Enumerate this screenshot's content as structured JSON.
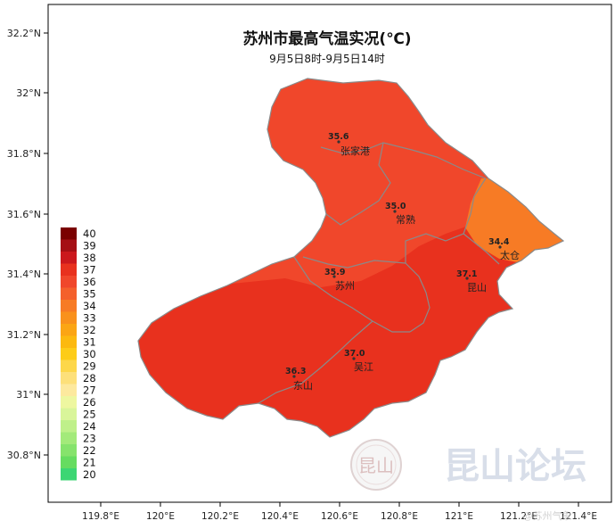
{
  "title": "苏州市最高气温实况(℃)",
  "subtitle": "9月5日8时-9月5日14时",
  "y_ticks": [
    "32.2°N",
    "32°N",
    "31.8°N",
    "31.6°N",
    "31.4°N",
    "31.2°N",
    "31°N",
    "30.8°N"
  ],
  "x_ticks": [
    "119.8°E",
    "120°E",
    "120.2°E",
    "120.4°E",
    "120.6°E",
    "120.8°E",
    "121°E",
    "121.2°E",
    "121.4°E"
  ],
  "legend": {
    "levels": [
      {
        "value": "40",
        "color": "#7a0000"
      },
      {
        "value": "39",
        "color": "#a50f15"
      },
      {
        "value": "38",
        "color": "#cb181d"
      },
      {
        "value": "37",
        "color": "#e8311e"
      },
      {
        "value": "36",
        "color": "#f0472b"
      },
      {
        "value": "35",
        "color": "#f4602c"
      },
      {
        "value": "34",
        "color": "#f77b25"
      },
      {
        "value": "33",
        "color": "#f9911c"
      },
      {
        "value": "32",
        "color": "#fba514"
      },
      {
        "value": "31",
        "color": "#fcb90f"
      },
      {
        "value": "30",
        "color": "#fdcc18"
      },
      {
        "value": "29",
        "color": "#fdd74a"
      },
      {
        "value": "28",
        "color": "#fde07a"
      },
      {
        "value": "27",
        "color": "#fde99e"
      },
      {
        "value": "26",
        "color": "#eef7a0"
      },
      {
        "value": "25",
        "color": "#d9f59a"
      },
      {
        "value": "24",
        "color": "#bff08a"
      },
      {
        "value": "23",
        "color": "#a3ea7a"
      },
      {
        "value": "22",
        "color": "#86e36c"
      },
      {
        "value": "21",
        "color": "#66dc60"
      },
      {
        "value": "20",
        "color": "#3cd673"
      }
    ]
  },
  "stations": [
    {
      "value": "35.6",
      "name": "张家港"
    },
    {
      "value": "35.0",
      "name": "常熟"
    },
    {
      "value": "34.4",
      "name": "太仓"
    },
    {
      "value": "35.9",
      "name": "苏州"
    },
    {
      "value": "37.1",
      "name": "昆山"
    },
    {
      "value": "37.0",
      "name": "吴江"
    },
    {
      "value": "36.3",
      "name": "东山"
    }
  ],
  "region_colors": {
    "north": "#f0472b",
    "south": "#e8311e",
    "east": "#f77b25",
    "border": "#8a8a8a"
  },
  "watermark": {
    "text": "昆山论坛",
    "seal_text": "昆山",
    "credit": "@苏州气象"
  }
}
